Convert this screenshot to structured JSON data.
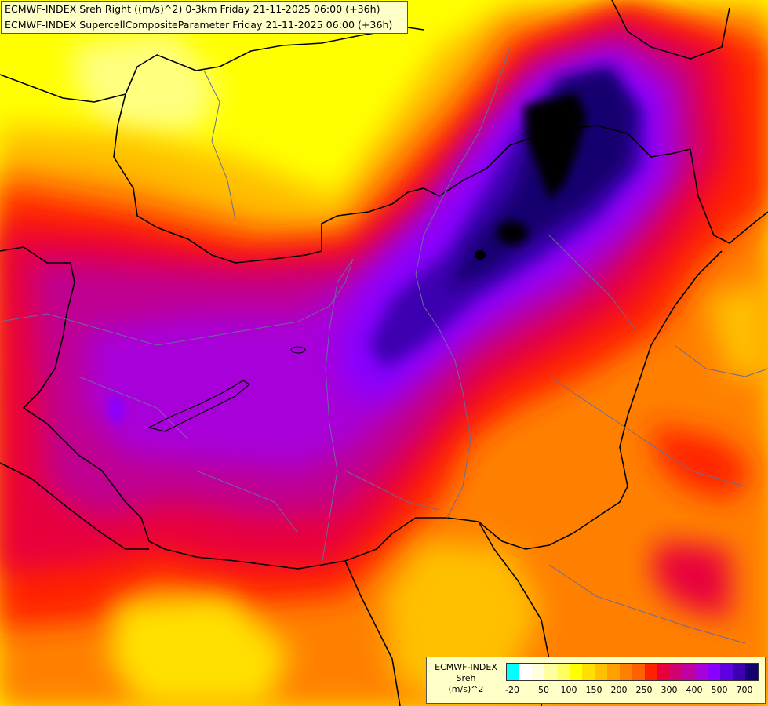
{
  "header": {
    "line1": "ECMWF-INDEX Sreh Right ((m/s)^2) 0-3km Friday 21-11-2025 06:00 (+36h)",
    "line2": "ECMWF-INDEX SupercellCompositeParameter Friday 21-11-2025 06:00 (+36h)"
  },
  "legend": {
    "title_model": "ECMWF-INDEX",
    "title_param": "Sreh",
    "title_unit": "(m/s)^2",
    "colors": [
      "#00ffff",
      "#ffffff",
      "#ffffe0",
      "#ffffa0",
      "#ffff60",
      "#ffff00",
      "#ffe000",
      "#ffc000",
      "#ffa000",
      "#ff8000",
      "#ff6000",
      "#ff2000",
      "#e8003c",
      "#d0006e",
      "#c000a0",
      "#a800d8",
      "#8800ff",
      "#6000e0",
      "#3c00b0",
      "#140070"
    ],
    "ticks": [
      {
        "label": "-20",
        "idx": 0.5
      },
      {
        "label": "50",
        "idx": 3
      },
      {
        "label": "100",
        "idx": 5
      },
      {
        "label": "150",
        "idx": 7
      },
      {
        "label": "200",
        "idx": 9
      },
      {
        "label": "250",
        "idx": 11
      },
      {
        "label": "300",
        "idx": 13
      },
      {
        "label": "400",
        "idx": 15
      },
      {
        "label": "500",
        "idx": 17
      },
      {
        "label": "700",
        "idx": 19
      }
    ]
  },
  "map_colors": {
    "yellow": "#ffff00",
    "light_yellow": "#ffff80",
    "gold": "#ffc000",
    "orange": "#ff8000",
    "red": "#ff2000",
    "crimson": "#e8003c",
    "magenta": "#c00090",
    "violet": "#a800d8",
    "purple": "#8800ff",
    "indigo": "#3c00b0",
    "navy": "#140070",
    "black": "#000000"
  }
}
